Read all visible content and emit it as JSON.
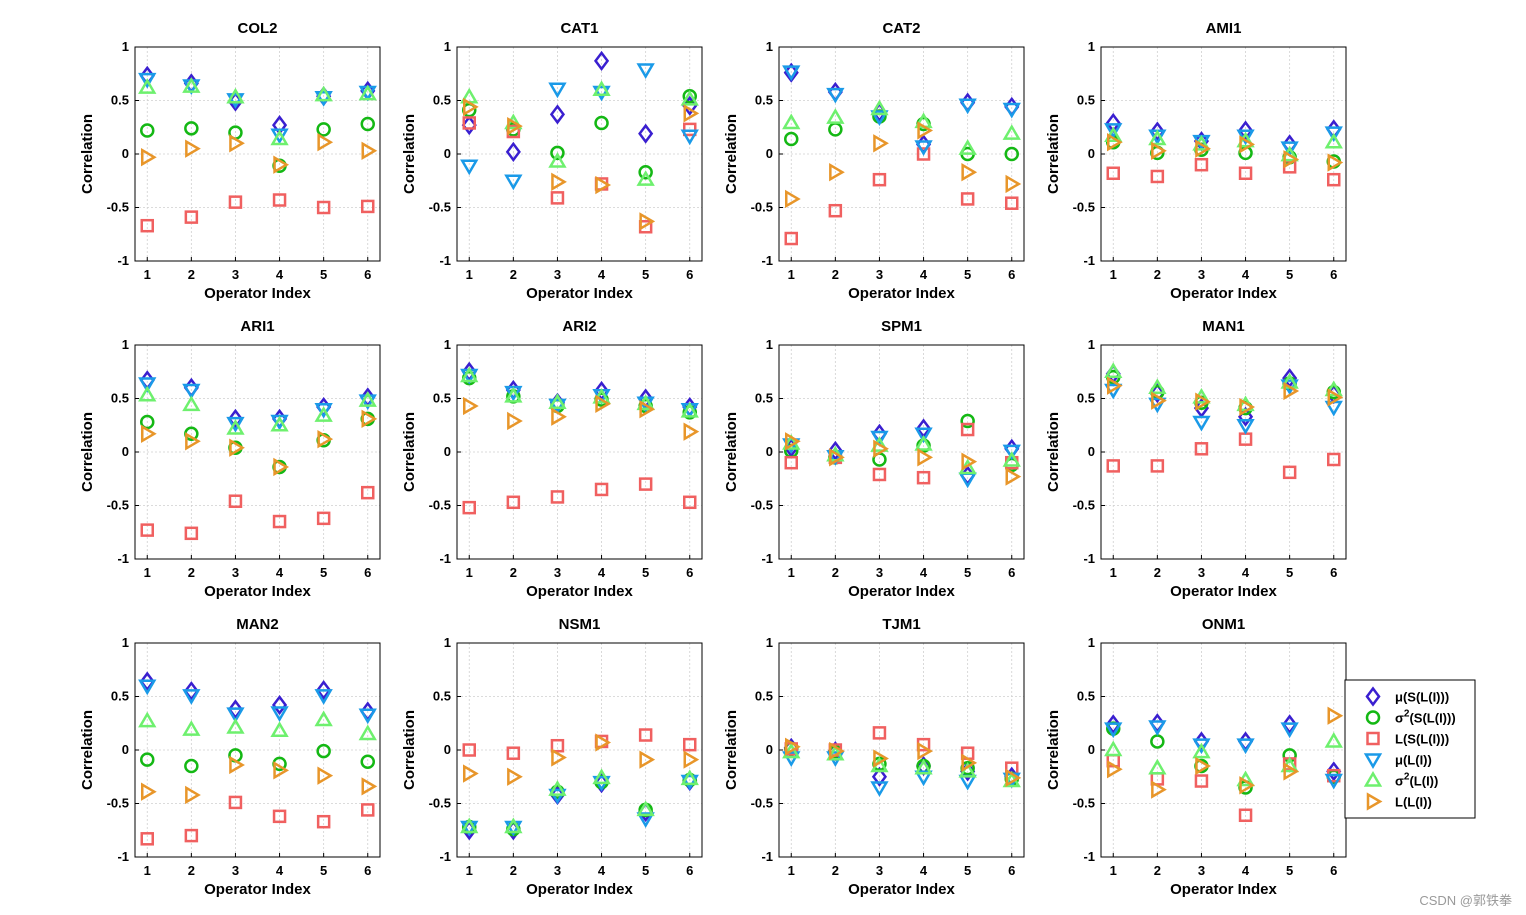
{
  "chart_data": {
    "type": "scatter",
    "shared": {
      "x": [
        1,
        2,
        3,
        4,
        5,
        6
      ],
      "xticks": [
        "1",
        "2",
        "3",
        "4",
        "5",
        "6"
      ],
      "xlabel": "Operator Index",
      "ylabel": "Correlation",
      "ylim": [
        -1,
        1
      ],
      "yticks": [
        "1",
        "0.5",
        "0",
        "-0.5",
        "-1"
      ],
      "ytick_values": [
        1,
        0.5,
        0,
        -0.5,
        -1
      ],
      "grid": true
    },
    "series_meta": [
      {
        "key": "mu_S",
        "name": "μ(S(L(I)))",
        "base": "μ",
        "sup": "",
        "rest": "(S(L(I)))",
        "marker": "diamond",
        "color": "#3a1fd0"
      },
      {
        "key": "var_S",
        "name": "σ2(S(L(I)))",
        "base": "σ",
        "sup": "2",
        "rest": "(S(L(I)))",
        "marker": "circle",
        "color": "#14b814"
      },
      {
        "key": "L_S",
        "name": "L(S(L(I)))",
        "base": "L",
        "sup": "",
        "rest": "(S(L(I)))",
        "marker": "square",
        "color": "#f06060"
      },
      {
        "key": "mu_L",
        "name": "μ(L(I))",
        "base": "μ",
        "sup": "",
        "rest": "(L(I))",
        "marker": "triangle-down",
        "color": "#1a9ae8"
      },
      {
        "key": "var_L",
        "name": "σ2(L(I))",
        "base": "σ",
        "sup": "2",
        "rest": "(L(I))",
        "marker": "triangle-up",
        "color": "#6ef06e"
      },
      {
        "key": "L_L",
        "name": "L(L(I))",
        "base": "L",
        "sup": "",
        "rest": "(L(I))",
        "marker": "triangle-right",
        "color": "#e8962a"
      }
    ],
    "legend_position": "right-of-bottom-right-panel",
    "panels": [
      {
        "title": "COL2",
        "series": {
          "mu_S": [
            0.73,
            0.66,
            0.49,
            0.27,
            0.54,
            0.59
          ],
          "var_S": [
            0.22,
            0.24,
            0.2,
            -0.11,
            0.23,
            0.28
          ],
          "L_S": [
            -0.67,
            -0.59,
            -0.45,
            -0.43,
            -0.5,
            -0.49
          ],
          "mu_L": [
            0.7,
            0.64,
            0.51,
            0.18,
            0.53,
            0.58
          ],
          "var_L": [
            0.62,
            0.63,
            0.53,
            0.14,
            0.55,
            0.56
          ],
          "L_L": [
            -0.03,
            0.05,
            0.1,
            -0.1,
            0.11,
            0.03
          ]
        }
      },
      {
        "title": "CAT1",
        "series": {
          "mu_S": [
            0.27,
            0.02,
            0.37,
            0.87,
            0.19,
            0.45
          ],
          "var_S": [
            0.41,
            0.23,
            0.01,
            0.29,
            -0.17,
            0.54
          ],
          "L_S": [
            0.29,
            0.21,
            -0.41,
            -0.28,
            -0.68,
            0.23
          ],
          "mu_L": [
            -0.11,
            -0.25,
            0.61,
            0.58,
            0.79,
            0.17
          ],
          "var_L": [
            0.53,
            0.29,
            -0.07,
            0.6,
            -0.24,
            0.51
          ],
          "L_L": [
            0.44,
            0.26,
            -0.26,
            -0.29,
            -0.63,
            0.38
          ]
        }
      },
      {
        "title": "CAT2",
        "series": {
          "mu_S": [
            0.76,
            0.58,
            0.39,
            0.09,
            0.48,
            0.44
          ],
          "var_S": [
            0.14,
            0.23,
            0.35,
            0.28,
            0.0,
            0.0
          ],
          "L_S": [
            -0.79,
            -0.53,
            -0.24,
            0.0,
            -0.42,
            -0.46
          ],
          "mu_L": [
            0.77,
            0.56,
            0.35,
            0.07,
            0.46,
            0.42
          ],
          "var_L": [
            0.29,
            0.34,
            0.42,
            0.3,
            0.05,
            0.19
          ],
          "L_L": [
            -0.42,
            -0.17,
            0.1,
            0.22,
            -0.17,
            -0.28
          ]
        }
      },
      {
        "title": "AMI1",
        "series": {
          "mu_S": [
            0.29,
            0.21,
            0.12,
            0.22,
            0.09,
            0.23
          ],
          "var_S": [
            0.11,
            0.01,
            0.04,
            0.01,
            -0.03,
            -0.07
          ],
          "L_S": [
            -0.18,
            -0.21,
            -0.1,
            -0.18,
            -0.12,
            -0.24
          ],
          "mu_L": [
            0.23,
            0.17,
            0.12,
            0.17,
            0.06,
            0.2
          ],
          "var_L": [
            0.17,
            0.14,
            0.09,
            0.12,
            -0.01,
            0.11
          ],
          "L_L": [
            0.11,
            0.03,
            0.05,
            0.09,
            -0.05,
            -0.08
          ]
        }
      },
      {
        "title": "ARI1",
        "series": {
          "mu_S": [
            0.67,
            0.6,
            0.31,
            0.31,
            0.42,
            0.51
          ],
          "var_S": [
            0.28,
            0.17,
            0.04,
            -0.14,
            0.11,
            0.31
          ],
          "L_S": [
            -0.73,
            -0.76,
            -0.46,
            -0.65,
            -0.62,
            -0.38
          ],
          "mu_L": [
            0.64,
            0.58,
            0.27,
            0.29,
            0.4,
            0.48
          ],
          "var_L": [
            0.53,
            0.44,
            0.22,
            0.25,
            0.34,
            0.48
          ],
          "L_L": [
            0.17,
            0.1,
            0.04,
            -0.14,
            0.12,
            0.31
          ]
        }
      },
      {
        "title": "ARI2",
        "series": {
          "mu_S": [
            0.75,
            0.58,
            0.46,
            0.57,
            0.5,
            0.42
          ],
          "var_S": [
            0.69,
            0.52,
            0.43,
            0.49,
            0.43,
            0.37
          ],
          "L_S": [
            -0.52,
            -0.47,
            -0.42,
            -0.35,
            -0.3,
            -0.47
          ],
          "mu_L": [
            0.72,
            0.56,
            0.44,
            0.53,
            0.46,
            0.4
          ],
          "var_L": [
            0.71,
            0.52,
            0.46,
            0.51,
            0.45,
            0.38
          ],
          "L_L": [
            0.43,
            0.29,
            0.33,
            0.45,
            0.4,
            0.19
          ]
        }
      },
      {
        "title": "SPM1",
        "series": {
          "mu_S": [
            0.04,
            0.01,
            0.17,
            0.22,
            -0.22,
            0.03
          ],
          "var_S": [
            0.01,
            -0.05,
            -0.07,
            0.06,
            0.29,
            -0.12
          ],
          "L_S": [
            -0.1,
            -0.05,
            -0.21,
            -0.24,
            0.21,
            -0.1
          ],
          "mu_L": [
            0.07,
            -0.04,
            0.14,
            0.17,
            -0.25,
            0.01
          ],
          "var_L": [
            0.08,
            -0.03,
            0.06,
            0.07,
            -0.15,
            -0.08
          ],
          "L_L": [
            0.1,
            -0.05,
            0.03,
            -0.05,
            -0.09,
            -0.23
          ]
        }
      },
      {
        "title": "MAN1",
        "series": {
          "mu_S": [
            0.73,
            0.55,
            0.41,
            0.33,
            0.69,
            0.54
          ],
          "var_S": [
            0.7,
            0.56,
            0.46,
            0.41,
            0.64,
            0.56
          ],
          "L_S": [
            -0.13,
            -0.13,
            0.03,
            0.12,
            -0.19,
            -0.07
          ],
          "mu_L": [
            0.58,
            0.45,
            0.28,
            0.25,
            0.62,
            0.42
          ],
          "var_L": [
            0.75,
            0.6,
            0.51,
            0.44,
            0.65,
            0.58
          ],
          "L_L": [
            0.62,
            0.48,
            0.47,
            0.42,
            0.57,
            0.51
          ]
        }
      },
      {
        "title": "MAN2",
        "series": {
          "mu_S": [
            0.64,
            0.55,
            0.38,
            0.42,
            0.56,
            0.36
          ],
          "var_S": [
            -0.09,
            -0.15,
            -0.05,
            -0.13,
            -0.01,
            -0.11
          ],
          "L_S": [
            -0.83,
            -0.8,
            -0.49,
            -0.62,
            -0.67,
            -0.56
          ],
          "mu_L": [
            0.6,
            0.51,
            0.34,
            0.35,
            0.51,
            0.33
          ],
          "var_L": [
            0.27,
            0.19,
            0.21,
            0.18,
            0.28,
            0.15
          ],
          "L_L": [
            -0.39,
            -0.42,
            -0.14,
            -0.19,
            -0.24,
            -0.34
          ]
        }
      },
      {
        "title": "NSM1",
        "series": {
          "mu_S": [
            -0.75,
            -0.75,
            -0.42,
            -0.31,
            -0.58,
            -0.29
          ],
          "var_S": [
            -0.72,
            -0.74,
            -0.39,
            -0.3,
            -0.56,
            -0.28
          ],
          "L_S": [
            0.0,
            -0.03,
            0.04,
            0.08,
            0.14,
            0.05
          ],
          "mu_L": [
            -0.72,
            -0.72,
            -0.42,
            -0.3,
            -0.64,
            -0.29
          ],
          "var_L": [
            -0.72,
            -0.72,
            -0.37,
            -0.26,
            -0.56,
            -0.27
          ],
          "L_L": [
            -0.22,
            -0.25,
            -0.07,
            0.07,
            -0.09,
            -0.09
          ]
        }
      },
      {
        "title": "TJM1",
        "series": {
          "mu_S": [
            0.02,
            -0.01,
            -0.25,
            -0.15,
            -0.2,
            -0.25
          ],
          "var_S": [
            0.01,
            -0.02,
            -0.13,
            -0.15,
            -0.17,
            -0.27
          ],
          "L_S": [
            0.01,
            0.0,
            0.16,
            0.05,
            -0.03,
            -0.17
          ],
          "mu_L": [
            -0.07,
            -0.07,
            -0.35,
            -0.25,
            -0.29,
            -0.27
          ],
          "var_L": [
            -0.02,
            -0.04,
            -0.15,
            -0.17,
            -0.2,
            -0.29
          ],
          "L_L": [
            0.03,
            -0.01,
            -0.08,
            -0.01,
            -0.12,
            -0.26
          ]
        }
      },
      {
        "title": "ONM1",
        "series": {
          "mu_S": [
            0.24,
            0.25,
            0.08,
            0.08,
            0.24,
            -0.2
          ],
          "var_S": [
            0.2,
            0.08,
            -0.15,
            -0.35,
            -0.05,
            -0.25
          ],
          "L_S": [
            -0.1,
            -0.27,
            -0.29,
            -0.61,
            -0.13,
            -0.24
          ],
          "mu_L": [
            0.2,
            0.22,
            0.05,
            0.05,
            0.2,
            -0.28
          ],
          "var_L": [
            0.0,
            -0.17,
            -0.02,
            -0.28,
            -0.15,
            0.08
          ],
          "L_L": [
            -0.18,
            -0.37,
            -0.15,
            -0.33,
            -0.2,
            0.32
          ]
        }
      }
    ]
  },
  "watermark": "CSDN @郭铁拳"
}
